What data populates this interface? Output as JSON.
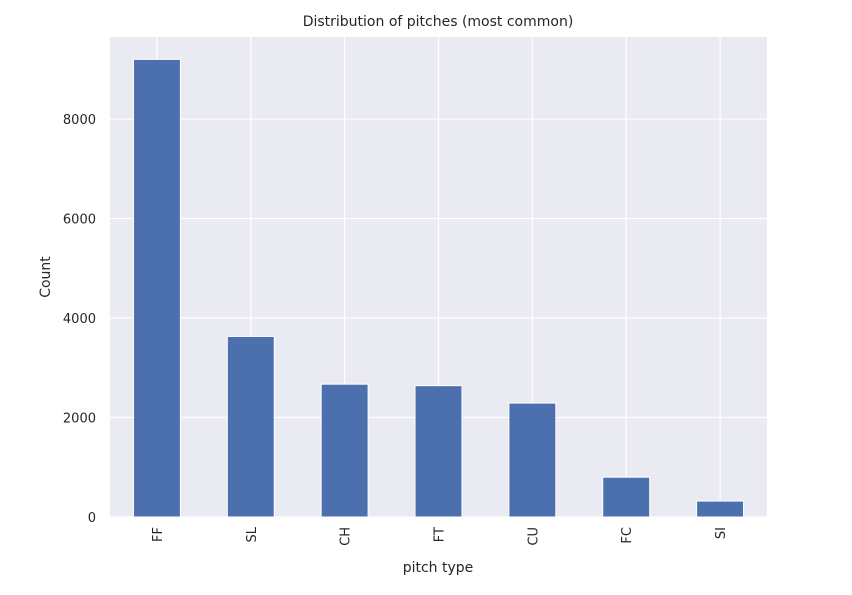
{
  "chart_data": {
    "type": "bar",
    "title": "Distribution of pitches  (most common)",
    "xlabel": "pitch type",
    "ylabel": "Count",
    "categories": [
      "FF",
      "SL",
      "CH",
      "FT",
      "CU",
      "FC",
      "SI"
    ],
    "values": [
      9200,
      3630,
      2670,
      2640,
      2290,
      800,
      320
    ],
    "ylim": [
      0,
      9650
    ],
    "yticks": [
      0,
      2000,
      4000,
      6000,
      8000
    ],
    "ytick_labels": [
      "0",
      "2000",
      "4000",
      "6000",
      "8000"
    ],
    "grid": true,
    "legend": "none",
    "colors": {
      "bar": "#4c6fae",
      "plot_background": "#eaeaf2",
      "grid": "#ffffff",
      "text": "#262626"
    }
  }
}
